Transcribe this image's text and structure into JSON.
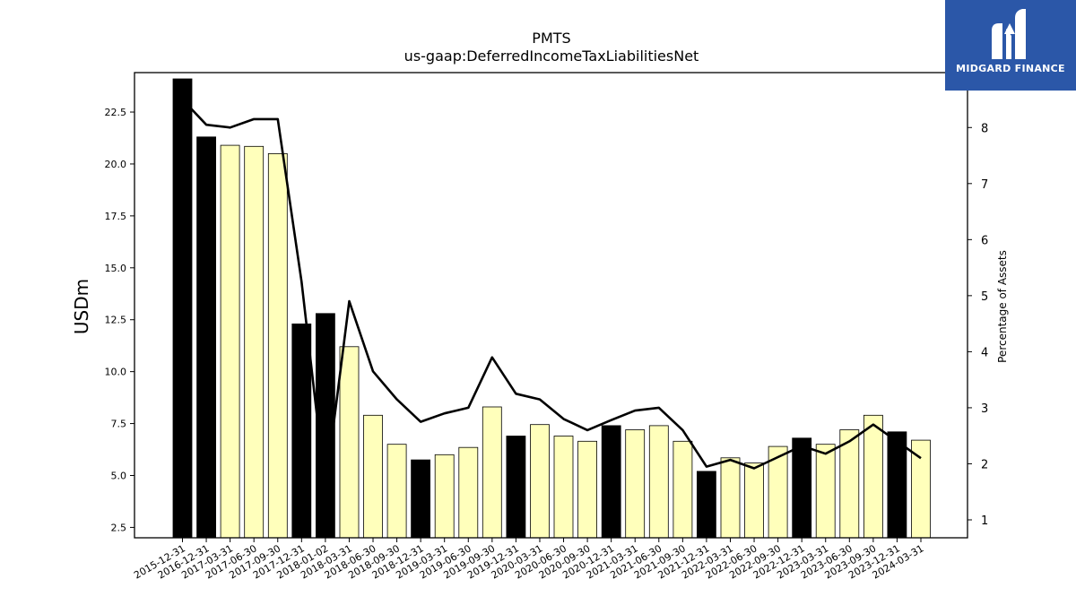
{
  "chart_data": {
    "type": "bar",
    "title": "PMTS",
    "subtitle": "us-gaap:DeferredIncomeTaxLiabilitiesNet",
    "ylabel": "USDm",
    "y2label": "Percentage of Assets",
    "ylim": [
      2.0,
      24.4
    ],
    "y2lim": [
      0.68,
      8.98
    ],
    "yticks": [
      "2.5",
      "5.0",
      "7.5",
      "10.0",
      "12.5",
      "15.0",
      "17.5",
      "20.0",
      "22.5"
    ],
    "y2ticks": [
      "1",
      "2",
      "3",
      "4",
      "5",
      "6",
      "7",
      "8"
    ],
    "categories": [
      "2015-12-31",
      "2016-12-31",
      "2017-03-31",
      "2017-06-30",
      "2017-09-30",
      "2017-12-31",
      "2018-01-02",
      "2018-03-31",
      "2018-06-30",
      "2018-09-30",
      "2018-12-31",
      "2019-03-31",
      "2019-06-30",
      "2019-09-30",
      "2019-12-31",
      "2020-03-31",
      "2020-06-30",
      "2020-09-30",
      "2020-12-31",
      "2021-03-31",
      "2021-06-30",
      "2021-09-30",
      "2021-12-31",
      "2022-03-31",
      "2022-06-30",
      "2022-09-30",
      "2022-12-31",
      "2023-03-31",
      "2023-06-30",
      "2023-09-30",
      "2023-12-31",
      "2024-03-31"
    ],
    "series": [
      {
        "type": "bar",
        "values": [
          24.1,
          21.3,
          20.9,
          20.85,
          20.5,
          12.3,
          12.8,
          11.2,
          7.9,
          6.5,
          5.75,
          6.0,
          6.35,
          8.3,
          6.9,
          7.45,
          6.9,
          6.65,
          7.4,
          7.2,
          7.4,
          6.65,
          5.2,
          5.85,
          5.6,
          6.4,
          6.8,
          6.5,
          7.2,
          7.9,
          7.1,
          6.7
        ],
        "fiscal_year_end": [
          true,
          true,
          false,
          false,
          false,
          true,
          true,
          false,
          false,
          false,
          true,
          false,
          false,
          false,
          true,
          false,
          false,
          false,
          true,
          false,
          false,
          false,
          true,
          false,
          false,
          false,
          true,
          false,
          false,
          false,
          true,
          false
        ],
        "colors": {
          "annual": "#000000",
          "quarter": "#ffffbb"
        }
      },
      {
        "type": "line",
        "axis": "right",
        "values": [
          8.5,
          8.05,
          8.0,
          8.15,
          8.15,
          5.25,
          1.55,
          4.9,
          3.65,
          3.15,
          2.75,
          2.9,
          3.0,
          3.9,
          3.25,
          3.15,
          2.8,
          2.6,
          2.78,
          2.95,
          3.0,
          2.6,
          1.95,
          2.07,
          1.92,
          2.12,
          2.32,
          2.18,
          2.4,
          2.7,
          2.4,
          2.1
        ],
        "color": "#000000"
      }
    ]
  },
  "logo": {
    "text": "MIDGARD FINANCE",
    "color": "#2b57a8"
  }
}
